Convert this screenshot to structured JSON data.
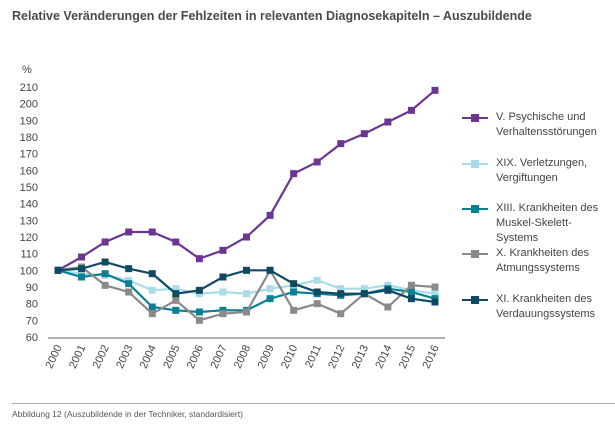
{
  "title": "Relative Veränderungen der Fehlzeiten in relevanten Diagnosekapiteln – Auszubildende",
  "footer": "Abbildung 12 (Auszubildende in der Techniker, standardisiert)",
  "chart_data": {
    "type": "line",
    "ylabel": "%",
    "xlabel": "",
    "ylim": [
      60,
      215
    ],
    "yticks": [
      60,
      70,
      80,
      90,
      100,
      110,
      120,
      130,
      140,
      150,
      160,
      170,
      180,
      190,
      200,
      210
    ],
    "x": [
      "2000",
      "2001",
      "2002",
      "2003",
      "2004",
      "2005",
      "2006",
      "2007",
      "2008",
      "2009",
      "2010",
      "2011",
      "2012",
      "2013",
      "2014",
      "2015",
      "2016"
    ],
    "grid": false,
    "legend_placement": "right",
    "series": [
      {
        "name": "V. Psychische und Verhaltensstörungen",
        "color": "#6b3591",
        "values": [
          100,
          108,
          117,
          123,
          123,
          117,
          107,
          112,
          120,
          133,
          158,
          165,
          176,
          182,
          189,
          196,
          208
        ]
      },
      {
        "name": "XIX. Verletzungen, Vergiftungen",
        "color": "#a9dbe9",
        "values": [
          100,
          98,
          97,
          94,
          88,
          89,
          86,
          87,
          86,
          89,
          91,
          94,
          89,
          89,
          91,
          88,
          86
        ]
      },
      {
        "name": "XIII. Krankheiten des Muskel-Skelett-Systems",
        "color": "#0b7f93",
        "values": [
          100,
          96,
          98,
          92,
          78,
          76,
          75,
          76,
          76,
          83,
          87,
          86,
          85,
          86,
          89,
          87,
          83
        ]
      },
      {
        "name": "X. Krankheiten des Atmungssystems",
        "color": "#8a8a8a",
        "values": [
          100,
          102,
          91,
          87,
          74,
          82,
          70,
          74,
          75,
          100,
          76,
          80,
          74,
          86,
          78,
          91,
          90
        ]
      },
      {
        "name": "XI. Krankheiten des Verdauungssystems",
        "color": "#0f4a63",
        "values": [
          100,
          101,
          105,
          101,
          98,
          86,
          88,
          96,
          100,
          100,
          92,
          87,
          86,
          86,
          88,
          83,
          81
        ]
      }
    ]
  }
}
